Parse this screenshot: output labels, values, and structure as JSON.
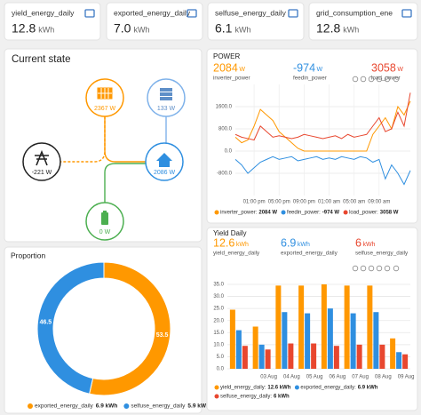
{
  "sensors": [
    {
      "name": "yield_energy_daily",
      "value": "12.8",
      "unit": "kWh"
    },
    {
      "name": "exported_energy_daily",
      "value": "7.0",
      "unit": "kWh"
    },
    {
      "name": "selfuse_energy_daily",
      "value": "6.1",
      "unit": "kWh"
    },
    {
      "name": "grid_consumption_ene",
      "value": "12.8",
      "unit": "kWh"
    }
  ],
  "current_state": {
    "title": "Current state",
    "nodes": [
      {
        "label": "2367 W"
      },
      {
        "label": "133 W"
      },
      {
        "label": "2086 W"
      },
      {
        "label": "-221 W"
      },
      {
        "label": "0 W"
      }
    ]
  },
  "proportion": {
    "title": "Proportion",
    "chart": {
      "type": "pie",
      "donut": true,
      "values": [
        53.5,
        46.5
      ],
      "colors": [
        "#ff9800",
        "#2f8fe0"
      ],
      "legend": [
        {
          "name": "exported_energy_daily",
          "value": "6.9 kWh"
        },
        {
          "name": "selfuse_energy_daily",
          "value": "5.9 kWh"
        }
      ]
    }
  },
  "power": {
    "title": "POWER",
    "stats": [
      {
        "value": "2084",
        "unit": "W",
        "name": "inverter_power"
      },
      {
        "value": "-974",
        "unit": "W",
        "name": "feedin_power"
      },
      {
        "value": "3058",
        "unit": "W",
        "name": "load_power"
      }
    ],
    "chart": {
      "type": "line",
      "x": [
        0,
        1,
        2,
        3,
        4,
        5,
        6,
        7,
        8,
        9,
        10,
        11,
        12,
        13,
        14,
        15,
        16,
        17,
        18,
        19,
        20,
        21,
        22,
        23,
        24,
        25,
        26,
        27,
        28
      ],
      "xlim": [
        0,
        28
      ],
      "xticks": [
        {
          "value": 3,
          "label": "01:00 pm"
        },
        {
          "value": 7,
          "label": "05:00 pm"
        },
        {
          "value": 11,
          "label": "09:00 pm"
        },
        {
          "value": 15,
          "label": "01:00 am"
        },
        {
          "value": 19,
          "label": "05:00 am"
        },
        {
          "value": 23,
          "label": "09:00 am"
        }
      ],
      "ylim": [
        -1600,
        2400
      ],
      "yticks": [
        {
          "value": 1600,
          "label": "1600.0"
        },
        {
          "value": 800,
          "label": "800.0"
        },
        {
          "value": 0,
          "label": "0.0"
        },
        {
          "value": -800,
          "label": "-800.0"
        }
      ],
      "grid": true,
      "series": [
        {
          "name": "inverter_power",
          "color": "#ff9800",
          "values": [
            500,
            300,
            400,
            900,
            1500,
            1300,
            1100,
            700,
            500,
            300,
            100,
            0,
            0,
            0,
            0,
            0,
            0,
            0,
            0,
            0,
            0,
            0,
            600,
            900,
            1200,
            800,
            1600,
            1300,
            1800
          ]
        },
        {
          "name": "feedin_power",
          "color": "#2f8fe0",
          "values": [
            -300,
            -500,
            -800,
            -600,
            -400,
            -300,
            -200,
            -300,
            -250,
            -200,
            -350,
            -300,
            -250,
            -200,
            -300,
            -250,
            -300,
            -200,
            -250,
            -300,
            -200,
            -250,
            -400,
            -300,
            -1000,
            -500,
            -800,
            -1200,
            -700
          ]
        },
        {
          "name": "load_power",
          "color": "#e8472f",
          "values": [
            600,
            500,
            450,
            400,
            900,
            700,
            500,
            550,
            500,
            450,
            500,
            600,
            550,
            500,
            450,
            500,
            550,
            450,
            600,
            500,
            550,
            600,
            900,
            1200,
            700,
            800,
            1400,
            900,
            2100
          ]
        }
      ],
      "legend": [
        {
          "label": "inverter_power:",
          "value": "2084 W"
        },
        {
          "label": "feedin_power:",
          "value": "-974 W"
        },
        {
          "label": "load_power:",
          "value": "3058 W"
        }
      ]
    }
  },
  "yield": {
    "title": "Yield Daily",
    "stats": [
      {
        "value": "12.6",
        "unit": "kWh",
        "name": "yield_energy_daily"
      },
      {
        "value": "6.9",
        "unit": "kWh",
        "name": "exported_energy_daily"
      },
      {
        "value": "6",
        "unit": "kWh",
        "name": "selfuse_energy_daily"
      }
    ],
    "chart": {
      "type": "bar",
      "categories": [
        null,
        "03 Aug",
        "04 Aug",
        "05 Aug",
        "06 Aug",
        "07 Aug",
        "08 Aug",
        "09 Aug"
      ],
      "ylim": [
        0,
        35
      ],
      "yticks": [
        {
          "value": 0,
          "label": "0.0"
        },
        {
          "value": 5,
          "label": "5.0"
        },
        {
          "value": 10,
          "label": "10.0"
        },
        {
          "value": 15,
          "label": "15.0"
        },
        {
          "value": 20,
          "label": "20.0"
        },
        {
          "value": 25,
          "label": "25.0"
        },
        {
          "value": 30,
          "label": "30.0"
        },
        {
          "value": 35,
          "label": "35.0"
        }
      ],
      "grid": true,
      "series": [
        {
          "name": "yield_energy_daily",
          "color": "#ff9800",
          "values": [
            24.5,
            17.5,
            34.5,
            34.5,
            35,
            34.5,
            34.5,
            12.6
          ]
        },
        {
          "name": "exported_energy_daily",
          "color": "#2f8fe0",
          "values": [
            16,
            10,
            23.5,
            23,
            25,
            23,
            23.5,
            6.9
          ]
        },
        {
          "name": "selfuse_energy_daily",
          "color": "#e8472f",
          "values": [
            9.5,
            8,
            10.5,
            10.5,
            9.5,
            10,
            10,
            6
          ]
        }
      ],
      "legend": [
        {
          "label": "yield_energy_daily:",
          "value": "12.6 kWh"
        },
        {
          "label": "exported_energy_daily:",
          "value": "6.9 kWh"
        },
        {
          "label": "selfuse_energy_daily:",
          "value": "6 kWh"
        }
      ]
    }
  }
}
